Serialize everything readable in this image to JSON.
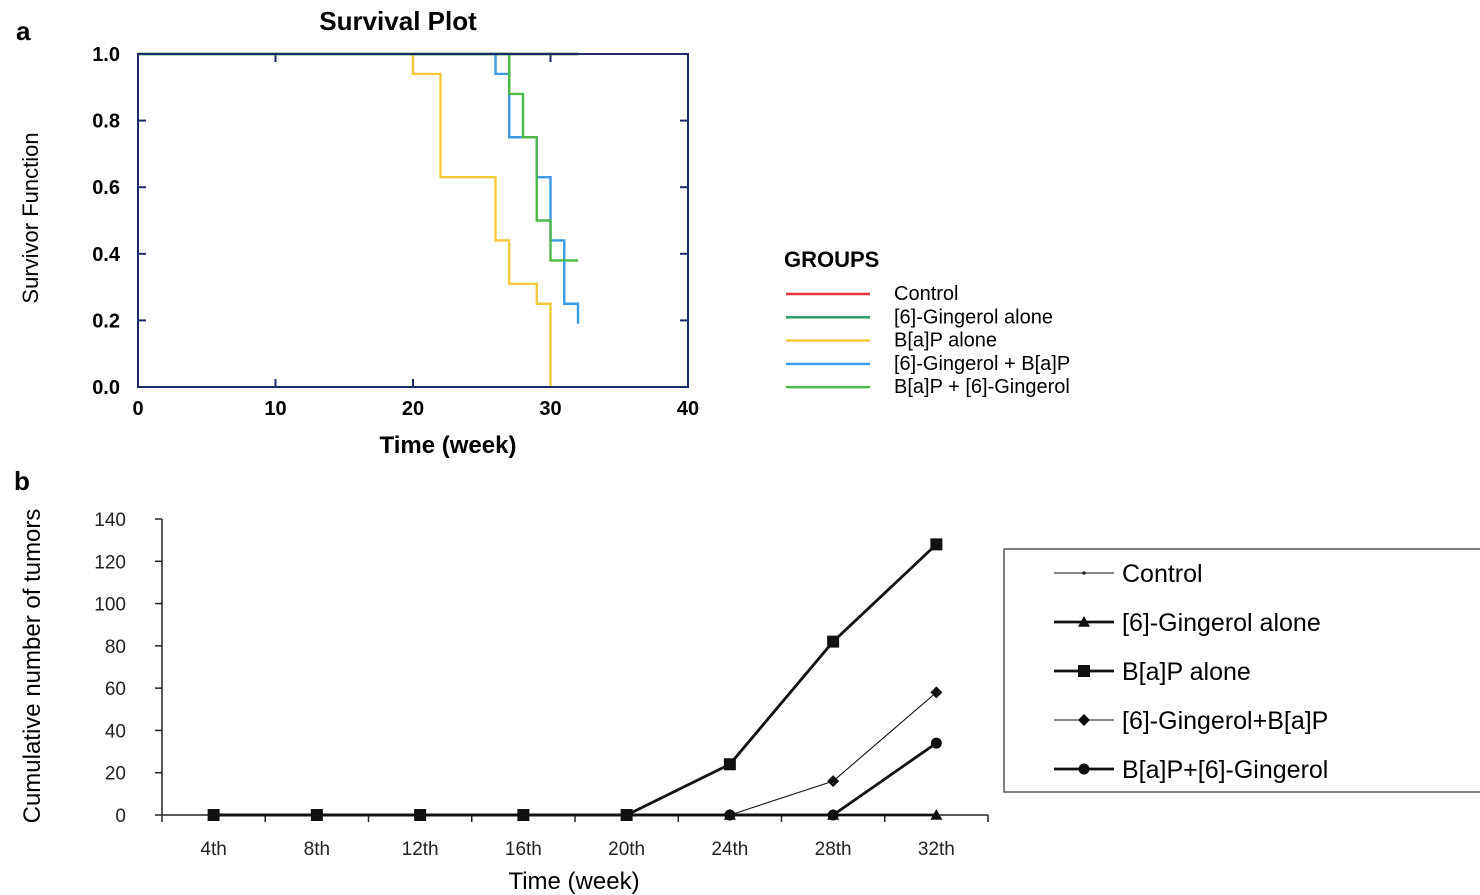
{
  "panels": {
    "a": "a",
    "b": "b"
  },
  "chart_data": [
    {
      "type": "line",
      "step": true,
      "title": "Survival Plot",
      "xlabel": "Time (week)",
      "ylabel": "Survivor Function",
      "xlim": [
        0,
        40
      ],
      "ylim": [
        0,
        1
      ],
      "xticks": [
        "0",
        "10",
        "20",
        "30",
        "40"
      ],
      "yticks": [
        "0.0",
        "0.2",
        "0.4",
        "0.6",
        "0.8",
        "1.0"
      ],
      "grid": false,
      "legend_title": "GROUPS",
      "legend_position": "right",
      "series": [
        {
          "name": "Control",
          "color": "#e8343a",
          "x": [
            0,
            32
          ],
          "y": [
            1.0,
            1.0
          ]
        },
        {
          "name": "[6]-Gingerol alone",
          "color": "#1f9a60",
          "x": [
            0,
            32
          ],
          "y": [
            1.0,
            1.0
          ]
        },
        {
          "name": "B[a]P alone",
          "color": "#f3c83a",
          "x": [
            0,
            20,
            22,
            26,
            27,
            29,
            30,
            30
          ],
          "y": [
            1.0,
            0.94,
            0.63,
            0.44,
            0.31,
            0.25,
            0.0,
            0.0
          ]
        },
        {
          "name": "[6]-Gingerol + B[a]P",
          "color": "#3a9be3",
          "x": [
            0,
            26,
            27,
            29,
            30,
            31,
            32,
            32
          ],
          "y": [
            1.0,
            0.94,
            0.75,
            0.63,
            0.44,
            0.25,
            0.19,
            0.19
          ]
        },
        {
          "name": "B[a]P + [6]-Gingerol",
          "color": "#4cb848",
          "x": [
            0,
            27,
            28,
            29,
            30,
            32
          ],
          "y": [
            1.0,
            0.88,
            0.75,
            0.5,
            0.38,
            0.38
          ]
        }
      ]
    },
    {
      "type": "line",
      "xlabel": "Time (week)",
      "ylabel": "Cumulative number of tumors",
      "categories": [
        "4th",
        "8th",
        "12th",
        "16th",
        "20th",
        "24th",
        "28th",
        "32th"
      ],
      "ylim": [
        0,
        140
      ],
      "yticks": [
        "0",
        "20",
        "40",
        "60",
        "80",
        "100",
        "120",
        "140"
      ],
      "grid": false,
      "legend_position": "right",
      "series": [
        {
          "name": "Control",
          "marker": "dot",
          "line": "thin",
          "values": [
            0,
            0,
            0,
            0,
            0,
            0,
            0,
            0
          ]
        },
        {
          "name": "[6]-Gingerol alone",
          "marker": "triangle",
          "line": "thick",
          "values": [
            0,
            0,
            0,
            0,
            0,
            0,
            0,
            0
          ]
        },
        {
          "name": "B[a]P alone",
          "marker": "square",
          "line": "thick",
          "values": [
            0,
            0,
            0,
            0,
            0,
            24,
            82,
            128
          ]
        },
        {
          "name": "[6]-Gingerol+B[a]P",
          "marker": "diamond",
          "line": "thin",
          "values": [
            0,
            0,
            0,
            0,
            0,
            0,
            16,
            58
          ]
        },
        {
          "name": "B[a]P+[6]-Gingerol",
          "marker": "circle",
          "line": "thick",
          "values": [
            0,
            0,
            0,
            0,
            0,
            0,
            0,
            34
          ]
        }
      ]
    }
  ]
}
